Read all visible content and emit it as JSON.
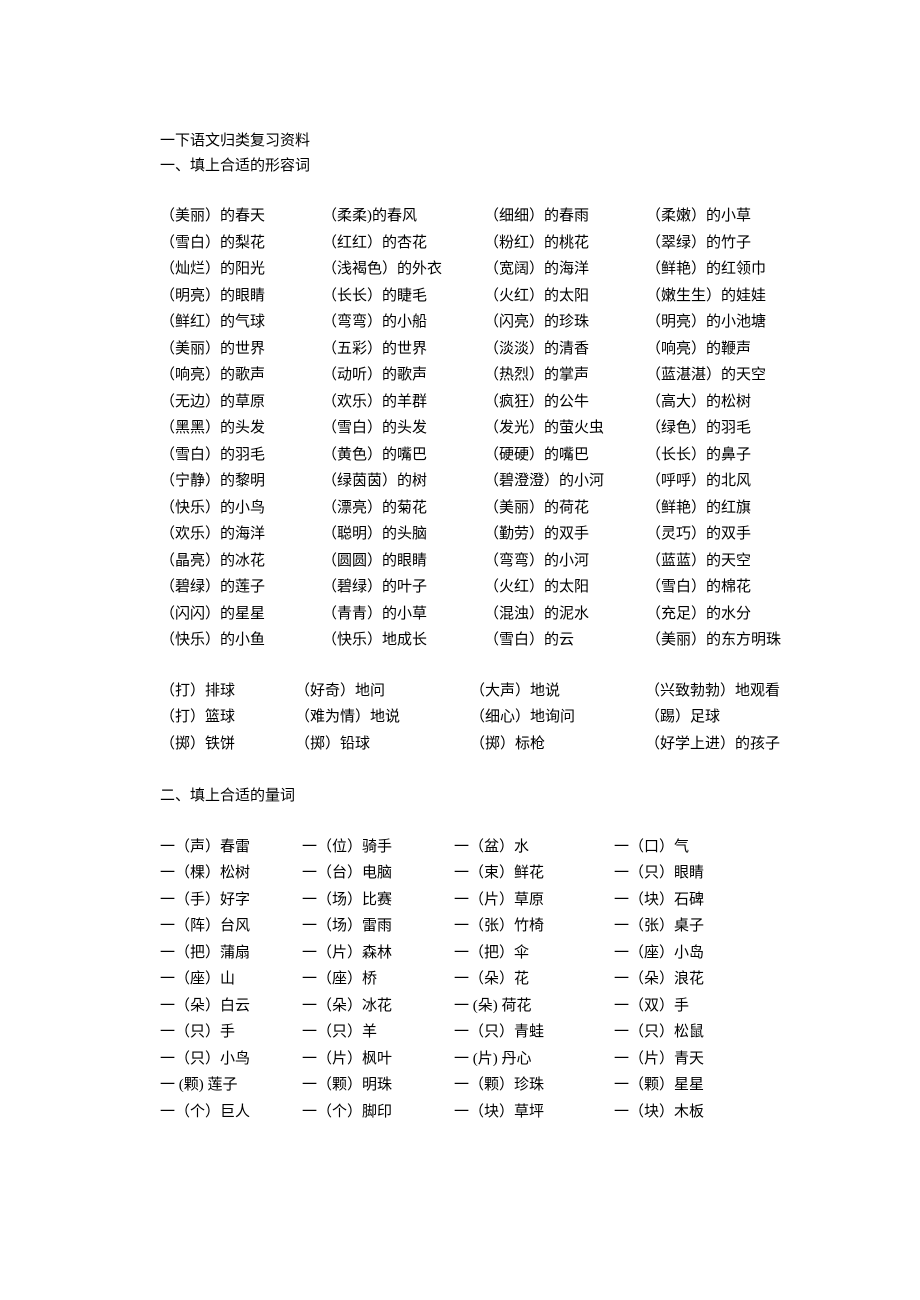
{
  "title": "一下语文归类复习资料",
  "section1": {
    "heading": "一、填上合适的形容词",
    "rows": [
      [
        "（美丽）的春天",
        "（柔柔)的春风",
        "（细细）的春雨",
        "（柔嫩）的小草"
      ],
      [
        "（雪白）的梨花",
        "（红红）的杏花",
        "（粉红）的桃花",
        "（翠绿）的竹子"
      ],
      [
        "（灿烂）的阳光",
        "（浅褐色）的外衣",
        "（宽阔）的海洋",
        "（鲜艳）的红领巾"
      ],
      [
        "（明亮）的眼睛",
        "（长长）的睫毛",
        "（火红）的太阳",
        "（嫩生生）的娃娃"
      ],
      [
        "（鲜红）的气球",
        "（弯弯）的小船",
        "（闪亮）的珍珠",
        "（明亮）的小池塘"
      ],
      [
        "（美丽）的世界",
        "（五彩）的世界",
        "（淡淡）的清香",
        "（响亮）的鞭声"
      ],
      [
        "（响亮）的歌声",
        "（动听）的歌声",
        "（热烈）的掌声",
        "（蓝湛湛）的天空"
      ],
      [
        "（无边）的草原",
        "（欢乐）的羊群",
        "（疯狂）的公牛",
        "（高大）的松树"
      ],
      [
        "（黑黑）的头发",
        "（雪白）的头发",
        "（发光）的萤火虫",
        "（绿色）的羽毛"
      ],
      [
        "（雪白）的羽毛",
        "（黄色）的嘴巴",
        "（硬硬）的嘴巴",
        "（长长）的鼻子"
      ],
      [
        "（宁静）的黎明",
        "（绿茵茵）的树",
        "（碧澄澄）的小河",
        "（呼呼）的北风"
      ],
      [
        "（快乐）的小鸟",
        "（漂亮）的菊花",
        "（美丽）的荷花",
        "（鲜艳）的红旗"
      ],
      [
        "（欢乐）的海洋",
        "（聪明）的头脑",
        "（勤劳）的双手",
        "（灵巧）的双手"
      ],
      [
        "（晶亮）的冰花",
        "（圆圆）的眼睛",
        "（弯弯）的小河",
        "（蓝蓝）的天空"
      ],
      [
        "（碧绿）的莲子",
        "（碧绿）的叶子",
        "（火红）的太阳",
        "（雪白）的棉花"
      ],
      [
        "（闪闪）的星星",
        "（青青）的小草",
        "（混浊）的泥水",
        "（充足）的水分"
      ],
      [
        "（快乐）的小鱼",
        "（快乐）地成长",
        "（雪白）的云",
        "（美丽）的东方明珠"
      ]
    ],
    "rows_b": [
      [
        "（打）排球",
        "（好奇）地问",
        "（大声）地说",
        "（兴致勃勃）地观看"
      ],
      [
        "（打）篮球",
        "（难为情）地说",
        "（细心）地询问",
        "（踢）足球"
      ],
      [
        "（掷）铁饼",
        "（掷）铅球",
        "（掷）标枪",
        "（好学上进）的孩子"
      ]
    ]
  },
  "section2": {
    "heading": "二、填上合适的量词",
    "rows": [
      [
        "一（声）春雷",
        "一（位）骑手",
        "一（盆）水",
        "一（口）气"
      ],
      [
        "一（棵）松树",
        "一（台）电脑",
        "一（束）鲜花",
        "一（只）眼睛"
      ],
      [
        "一（手）好字",
        "一（场）比赛",
        "一（片）草原",
        "一（块）石碑"
      ],
      [
        "一（阵）台风",
        "一（场）雷雨",
        "一（张）竹椅",
        "一（张）桌子"
      ],
      [
        "一（把）蒲扇",
        "一（片）森林",
        "一（把）伞",
        "一（座）小岛"
      ],
      [
        "一（座）山",
        "一（座）桥",
        "一（朵）花",
        "一（朵）浪花"
      ],
      [
        "一（朵）白云",
        "一（朵）冰花",
        "一 (朵) 荷花",
        "一（双）手"
      ],
      [
        "一（只）手",
        "一（只）羊",
        "一（只）青蛙",
        "一（只）松鼠"
      ],
      [
        "一（只）小鸟",
        "一（片）枫叶",
        "一 (片) 丹心",
        "一（片）青天"
      ],
      [
        "一 (颗) 莲子",
        "一（颗）明珠",
        "一（颗）珍珠",
        "一（颗）星星"
      ],
      [
        "一（个）巨人",
        "一（个）脚印",
        "一（块）草坪",
        "一（块）木板"
      ]
    ]
  }
}
